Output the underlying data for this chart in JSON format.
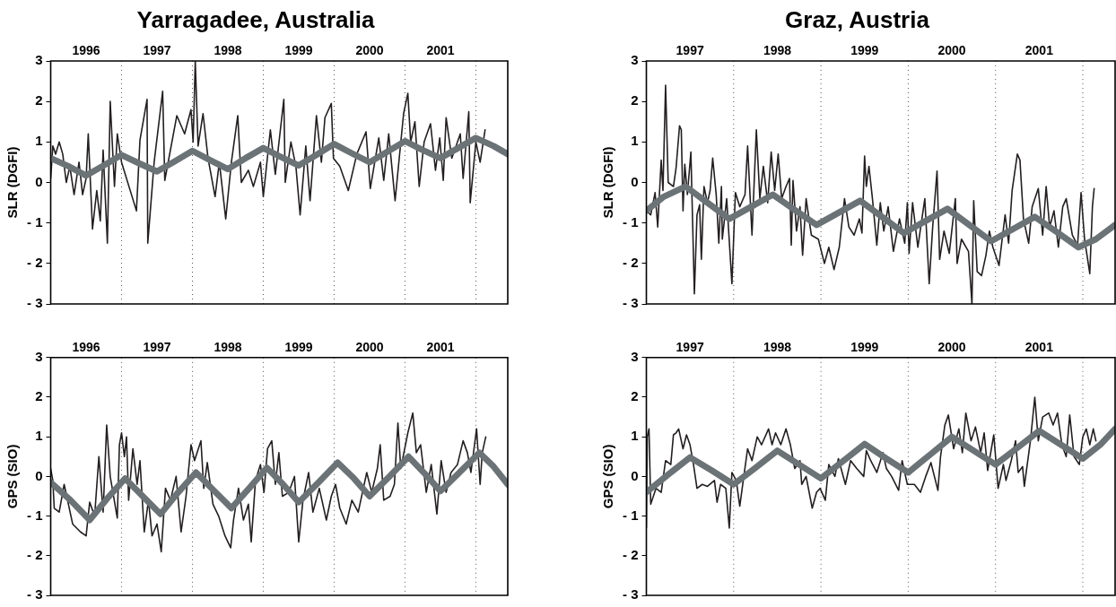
{
  "chart_data": [
    {
      "type": "line",
      "title": "Yarragadee, Australia",
      "ylabel": "SLR (DGFI)",
      "xlim": [
        1996,
        2002.45
      ],
      "xticks": [
        {
          "value": 1996.5,
          "label": "1996"
        },
        {
          "value": 1997.5,
          "label": "1997"
        },
        {
          "value": 1998.5,
          "label": "1998"
        },
        {
          "value": 1999.5,
          "label": "1999"
        },
        {
          "value": 2000.5,
          "label": "2000"
        },
        {
          "value": 2001.5,
          "label": "2001"
        }
      ],
      "ylim": [
        -3,
        3
      ],
      "yticks": [
        {
          "value": -3,
          "label": "- 3"
        },
        {
          "value": -2,
          "label": "- 2"
        },
        {
          "value": -1,
          "label": "- 1"
        },
        0,
        1,
        2,
        3
      ],
      "ref_lines": [
        {
          "axis": "x",
          "value": 1997,
          "line_style": "dotted"
        },
        {
          "axis": "x",
          "value": 1998,
          "line_style": "dotted"
        },
        {
          "axis": "x",
          "value": 1999,
          "line_style": "dotted"
        },
        {
          "axis": "x",
          "value": 2000,
          "line_style": "dotted"
        },
        {
          "axis": "x",
          "value": 2001,
          "line_style": "dotted"
        },
        {
          "axis": "x",
          "value": 2002,
          "line_style": "dotted"
        }
      ],
      "series": [
        {
          "color": "#231f20",
          "x": [
            1996.0,
            1996.03,
            1996.07,
            1996.12,
            1996.17,
            1996.22,
            1996.27,
            1996.33,
            1996.4,
            1996.45,
            1996.5,
            1996.53,
            1996.59,
            1996.65,
            1996.7,
            1996.74,
            1996.8,
            1996.84,
            1996.9,
            1996.94,
            1997.0,
            1997.21,
            1997.26,
            1997.36,
            1997.37,
            1997.46,
            1997.58,
            1997.61,
            1997.78,
            1997.89,
            1997.98,
            1998.01,
            1998.04,
            1998.08,
            1998.15,
            1998.22,
            1998.32,
            1998.38,
            1998.47,
            1998.55,
            1998.64,
            1998.69,
            1998.79,
            1998.86,
            1998.96,
            1999.0,
            1999.1,
            1999.17,
            1999.29,
            1999.31,
            1999.39,
            1999.46,
            1999.52,
            1999.6,
            1999.66,
            1999.75,
            1999.82,
            1999.87,
            1999.96,
            1999.99,
            2000.08,
            2000.2,
            2000.32,
            2000.45,
            2000.51,
            2000.63,
            2000.7,
            2000.77,
            2000.86,
            2000.98,
            2001.04,
            2001.08,
            2001.14,
            2001.2,
            2001.27,
            2001.36,
            2001.43,
            2001.49,
            2001.54,
            2001.58,
            2001.66,
            2001.78,
            2001.82,
            2001.9,
            2001.92,
            2002.0,
            2002.06,
            2002.13
          ],
          "values": [
            0.1,
            0.9,
            0.7,
            1.0,
            0.7,
            0.0,
            0.4,
            -0.3,
            0.5,
            -0.3,
            0.1,
            1.2,
            -1.15,
            -0.2,
            -0.95,
            0.8,
            -1.5,
            2.0,
            -0.1,
            1.2,
            0.5,
            -0.7,
            1.05,
            2.05,
            -1.5,
            0.5,
            2.25,
            0.05,
            1.65,
            1.2,
            1.8,
            1.0,
            3.0,
            0.9,
            1.7,
            0.6,
            -0.35,
            0.5,
            -0.9,
            0.5,
            1.65,
            0.0,
            0.3,
            -0.1,
            0.5,
            -0.35,
            1.3,
            0.2,
            2.05,
            0.0,
            1.0,
            0.4,
            -0.8,
            0.9,
            -0.45,
            1.65,
            0.5,
            1.6,
            1.95,
            0.6,
            0.4,
            -0.2,
            0.7,
            1.25,
            -0.15,
            1.1,
            0.05,
            1.2,
            -0.45,
            1.7,
            2.2,
            1.0,
            1.5,
            -0.1,
            1.0,
            1.45,
            0.3,
            1.1,
            0.05,
            1.6,
            0.6,
            1.2,
            0.1,
            1.75,
            -0.5,
            1.0,
            0.5,
            1.3
          ]
        },
        {
          "color": "#6b7377",
          "x": [
            1996.0,
            1996.25,
            1996.5,
            1996.75,
            1997.0,
            1997.25,
            1997.5,
            1997.75,
            1998.0,
            1998.25,
            1998.5,
            1998.75,
            1999.0,
            1999.25,
            1999.5,
            1999.75,
            2000.0,
            2000.25,
            2000.5,
            2000.75,
            2001.0,
            2001.25,
            2001.5,
            2001.75,
            2002.0,
            2002.25,
            2002.45
          ],
          "values": [
            0.6,
            0.4,
            0.17,
            0.42,
            0.68,
            0.47,
            0.27,
            0.52,
            0.78,
            0.55,
            0.33,
            0.6,
            0.85,
            0.63,
            0.42,
            0.68,
            0.95,
            0.72,
            0.5,
            0.76,
            1.02,
            0.8,
            0.6,
            0.85,
            1.1,
            0.9,
            0.7
          ]
        }
      ]
    },
    {
      "type": "line",
      "title": "Graz, Austria",
      "ylabel": "SLR (DGFI)",
      "xlim": [
        1997,
        2002.37
      ],
      "xticks": [
        {
          "value": 1997.5,
          "label": "1997"
        },
        {
          "value": 1998.5,
          "label": "1998"
        },
        {
          "value": 1999.5,
          "label": "1999"
        },
        {
          "value": 2000.5,
          "label": "2000"
        },
        {
          "value": 2001.5,
          "label": "2001"
        }
      ],
      "ylim": [
        -3,
        3
      ],
      "yticks": [
        {
          "value": -3,
          "label": "- 3"
        },
        {
          "value": -2,
          "label": "- 2"
        },
        {
          "value": -1,
          "label": "- 1"
        },
        0,
        1,
        2,
        3
      ],
      "ref_lines": [
        {
          "axis": "x",
          "value": 1998,
          "line_style": "dotted"
        },
        {
          "axis": "x",
          "value": 1999,
          "line_style": "dotted"
        },
        {
          "axis": "x",
          "value": 2000,
          "line_style": "dotted"
        },
        {
          "axis": "x",
          "value": 2001,
          "line_style": "dotted"
        },
        {
          "axis": "x",
          "value": 2002,
          "line_style": "dotted"
        }
      ],
      "series": [
        {
          "color": "#231f20",
          "x": [
            1997.0,
            1997.05,
            1997.1,
            1997.13,
            1997.17,
            1997.19,
            1997.22,
            1997.25,
            1997.31,
            1997.34,
            1997.38,
            1997.4,
            1997.42,
            1997.44,
            1997.47,
            1997.51,
            1997.55,
            1997.58,
            1997.61,
            1997.63,
            1997.66,
            1997.7,
            1997.73,
            1997.76,
            1997.8,
            1997.83,
            1997.86,
            1997.87,
            1997.92,
            1997.98,
            1998.02,
            1998.07,
            1998.13,
            1998.16,
            1998.21,
            1998.26,
            1998.3,
            1998.34,
            1998.39,
            1998.43,
            1998.47,
            1998.51,
            1998.55,
            1998.6,
            1998.64,
            1998.66,
            1998.68,
            1998.72,
            1998.76,
            1998.79,
            1998.83,
            1998.89,
            1998.97,
            1999.04,
            1999.09,
            1999.15,
            1999.21,
            1999.27,
            1999.32,
            1999.38,
            1999.44,
            1999.47,
            1999.5,
            1999.52,
            1999.55,
            1999.59,
            1999.64,
            1999.68,
            1999.72,
            1999.77,
            1999.83,
            1999.9,
            1999.96,
            1999.99,
            2000.01,
            2000.05,
            2000.11,
            2000.19,
            2000.24,
            2000.28,
            2000.33,
            2000.36,
            2000.41,
            2000.47,
            2000.54,
            2000.56,
            2000.61,
            2000.69,
            2000.73,
            2000.75,
            2000.79,
            2000.84,
            2000.89,
            2000.93,
            2000.97,
            2001.04,
            2001.11,
            2001.15,
            2001.19,
            2001.25,
            2001.28,
            2001.32,
            2001.38,
            2001.42,
            2001.49,
            2001.54,
            2001.58,
            2001.62,
            2001.67,
            2001.72,
            2001.77,
            2001.81,
            2001.88,
            2001.94,
            2001.98,
            2002.02,
            2002.08,
            2002.11,
            2002.13
          ],
          "values": [
            -0.7,
            -0.8,
            -0.25,
            -1.1,
            0.55,
            -0.2,
            2.4,
            0.0,
            -0.1,
            0.35,
            1.4,
            1.3,
            -0.7,
            0.45,
            -0.3,
            0.75,
            -2.75,
            -0.8,
            -0.55,
            -1.9,
            -0.1,
            -0.5,
            -0.2,
            0.6,
            -0.3,
            -1.5,
            -0.1,
            -1.4,
            -0.4,
            -2.5,
            -0.25,
            -0.6,
            -0.3,
            0.9,
            -1.3,
            1.3,
            -0.4,
            0.4,
            -0.5,
            0.75,
            -0.2,
            0.7,
            -0.4,
            -0.1,
            0.1,
            -1.55,
            0.05,
            -1.2,
            -0.6,
            -1.8,
            -0.4,
            -1.3,
            -1.4,
            -2.0,
            -1.6,
            -2.15,
            -1.6,
            -0.4,
            -1.1,
            -1.3,
            -0.9,
            -1.25,
            0.65,
            -0.1,
            0.4,
            -0.4,
            -1.55,
            -0.5,
            -1.2,
            -0.6,
            -1.7,
            -0.9,
            -1.5,
            -0.5,
            -1.75,
            -0.5,
            -1.6,
            -0.4,
            -2.5,
            -1.1,
            0.28,
            -1.9,
            -1.2,
            -1.75,
            -0.4,
            -2.0,
            -1.4,
            -1.7,
            -3.0,
            -0.45,
            -2.2,
            -2.3,
            -1.8,
            -1.2,
            -1.6,
            -2.05,
            -0.8,
            -1.5,
            -0.2,
            0.7,
            0.55,
            -0.9,
            -1.5,
            -0.6,
            -0.15,
            -1.3,
            -0.1,
            -1.1,
            -0.7,
            -1.6,
            -0.6,
            -0.4,
            -1.3,
            -1.55,
            -0.25,
            -1.4,
            -2.25,
            -0.6,
            -0.15
          ]
        },
        {
          "color": "#6b7377",
          "x": [
            1997.0,
            1997.2,
            1997.45,
            1997.7,
            1997.95,
            1998.2,
            1998.45,
            1998.7,
            1998.95,
            1999.2,
            1999.45,
            1999.7,
            1999.95,
            2000.2,
            2000.45,
            2000.7,
            2000.95,
            2001.2,
            2001.45,
            2001.7,
            2001.95,
            2002.15,
            2002.37
          ],
          "values": [
            -0.7,
            -0.35,
            -0.1,
            -0.5,
            -0.9,
            -0.6,
            -0.3,
            -0.68,
            -1.05,
            -0.75,
            -0.45,
            -0.85,
            -1.25,
            -0.95,
            -0.65,
            -1.05,
            -1.45,
            -1.15,
            -0.85,
            -1.22,
            -1.6,
            -1.4,
            -1.05
          ]
        }
      ]
    },
    {
      "type": "line",
      "ylabel": "GPS (SIO)",
      "xlim": [
        1996,
        2002.45
      ],
      "xticks": [
        {
          "value": 1996.5,
          "label": "1996"
        },
        {
          "value": 1997.5,
          "label": "1997"
        },
        {
          "value": 1998.5,
          "label": "1998"
        },
        {
          "value": 1999.5,
          "label": "1999"
        },
        {
          "value": 2000.5,
          "label": "2000"
        },
        {
          "value": 2001.5,
          "label": "2001"
        }
      ],
      "ylim": [
        -3,
        3
      ],
      "yticks": [
        {
          "value": -3,
          "label": "- 3"
        },
        {
          "value": -2,
          "label": "- 2"
        },
        {
          "value": -1,
          "label": "- 1"
        },
        0,
        1,
        2,
        3
      ],
      "ref_lines": [
        {
          "axis": "x",
          "value": 1997,
          "line_style": "dotted"
        },
        {
          "axis": "x",
          "value": 1998,
          "line_style": "dotted"
        },
        {
          "axis": "x",
          "value": 1999,
          "line_style": "dotted"
        },
        {
          "axis": "x",
          "value": 2000,
          "line_style": "dotted"
        },
        {
          "axis": "x",
          "value": 2001,
          "line_style": "dotted"
        },
        {
          "axis": "x",
          "value": 2002,
          "line_style": "dotted"
        }
      ],
      "series": [
        {
          "color": "#231f20",
          "x": [
            1996.0,
            1996.03,
            1996.05,
            1996.12,
            1996.19,
            1996.31,
            1996.42,
            1996.5,
            1996.55,
            1996.62,
            1996.68,
            1996.74,
            1996.79,
            1996.84,
            1996.94,
            1996.97,
            1997.0,
            1997.04,
            1997.07,
            1997.1,
            1997.16,
            1997.22,
            1997.26,
            1997.32,
            1997.38,
            1997.43,
            1997.5,
            1997.56,
            1997.62,
            1997.69,
            1997.77,
            1997.84,
            1997.91,
            1997.98,
            1998.03,
            1998.12,
            1998.16,
            1998.21,
            1998.29,
            1998.37,
            1998.46,
            1998.54,
            1998.58,
            1998.65,
            1998.72,
            1998.79,
            1998.83,
            1998.89,
            1998.96,
            1999.01,
            1999.06,
            1999.12,
            1999.17,
            1999.22,
            1999.27,
            1999.36,
            1999.44,
            1999.5,
            1999.56,
            1999.64,
            1999.7,
            1999.79,
            1999.89,
            1999.96,
            2000.02,
            2000.08,
            2000.17,
            2000.25,
            2000.34,
            2000.46,
            2000.53,
            2000.61,
            2000.65,
            2000.7,
            2000.79,
            2000.85,
            2000.9,
            2000.94,
            2001.04,
            2001.11,
            2001.16,
            2001.22,
            2001.3,
            2001.37,
            2001.45,
            2001.51,
            2001.58,
            2001.65,
            2001.74,
            2001.82,
            2001.88,
            2001.93,
            2002.01,
            2002.06,
            2002.09,
            2002.14
          ],
          "values": [
            0.2,
            -0.1,
            -0.8,
            -0.9,
            -0.2,
            -1.2,
            -1.4,
            -1.5,
            -0.65,
            -1.0,
            0.5,
            -0.9,
            1.3,
            0.0,
            -1.05,
            0.8,
            1.1,
            0.5,
            1.0,
            -0.6,
            0.7,
            -0.2,
            0.4,
            -1.4,
            -0.6,
            -1.5,
            -1.2,
            -1.9,
            -0.3,
            -0.6,
            0.0,
            -1.4,
            -0.5,
            0.8,
            0.4,
            0.9,
            -0.3,
            0.35,
            -0.7,
            -1.0,
            -1.5,
            -1.8,
            -1.1,
            -0.3,
            -1.1,
            -0.7,
            -1.65,
            -0.1,
            0.3,
            -0.4,
            0.7,
            0.9,
            -0.2,
            0.6,
            -0.5,
            -0.4,
            0.0,
            -1.65,
            -0.6,
            0.1,
            -0.9,
            -0.3,
            -1.1,
            -0.5,
            -0.2,
            -0.8,
            -1.2,
            -0.6,
            -0.9,
            0.1,
            -0.4,
            0.2,
            0.8,
            -0.6,
            -0.5,
            -0.2,
            1.35,
            0.2,
            1.1,
            1.6,
            0.6,
            0.8,
            -0.4,
            0.3,
            -0.95,
            0.4,
            -0.4,
            0.1,
            0.3,
            0.9,
            0.6,
            0.1,
            1.2,
            -0.2,
            0.6,
            1.0
          ]
        },
        {
          "color": "#6b7377",
          "x": [
            1996.0,
            1996.28,
            1996.55,
            1996.8,
            1997.05,
            1997.3,
            1997.55,
            1997.8,
            1998.05,
            1998.3,
            1998.55,
            1998.8,
            1999.05,
            1999.28,
            1999.5,
            1999.78,
            2000.05,
            2000.28,
            2000.5,
            2000.78,
            2001.05,
            2001.28,
            2001.5,
            2001.78,
            2002.05,
            2002.25,
            2002.45
          ],
          "values": [
            -0.15,
            -0.6,
            -1.1,
            -0.55,
            -0.05,
            -0.5,
            -0.95,
            -0.4,
            0.1,
            -0.35,
            -0.8,
            -0.3,
            0.22,
            -0.2,
            -0.65,
            -0.15,
            0.35,
            -0.05,
            -0.5,
            0.0,
            0.5,
            0.07,
            -0.37,
            0.12,
            0.6,
            0.25,
            -0.2
          ]
        }
      ]
    },
    {
      "type": "line",
      "ylabel": "GPS (SIO)",
      "xlim": [
        1997,
        2002.37
      ],
      "xticks": [
        {
          "value": 1997.5,
          "label": "1997"
        },
        {
          "value": 1998.5,
          "label": "1998"
        },
        {
          "value": 1999.5,
          "label": "1999"
        },
        {
          "value": 2000.5,
          "label": "2000"
        },
        {
          "value": 2001.5,
          "label": "2001"
        }
      ],
      "ylim": [
        -3,
        3
      ],
      "yticks": [
        {
          "value": -3,
          "label": "- 3"
        },
        {
          "value": -2,
          "label": "- 2"
        },
        {
          "value": -1,
          "label": "- 1"
        },
        0,
        1,
        2,
        3
      ],
      "ref_lines": [
        {
          "axis": "x",
          "value": 1998,
          "line_style": "dotted"
        },
        {
          "axis": "x",
          "value": 1999,
          "line_style": "dotted"
        },
        {
          "axis": "x",
          "value": 2000,
          "line_style": "dotted"
        },
        {
          "axis": "x",
          "value": 2001,
          "line_style": "dotted"
        },
        {
          "axis": "x",
          "value": 2002,
          "line_style": "dotted"
        }
      ],
      "series": [
        {
          "color": "#231f20",
          "x": [
            1997.0,
            1997.01,
            1997.03,
            1997.05,
            1997.11,
            1997.17,
            1997.22,
            1997.28,
            1997.31,
            1997.34,
            1997.37,
            1997.42,
            1997.46,
            1997.5,
            1997.54,
            1997.58,
            1997.64,
            1997.7,
            1997.78,
            1997.81,
            1997.85,
            1997.91,
            1997.95,
            1997.98,
            1998.03,
            1998.07,
            1998.11,
            1998.16,
            1998.21,
            1998.27,
            1998.32,
            1998.4,
            1998.44,
            1998.48,
            1998.54,
            1998.6,
            1998.65,
            1998.7,
            1998.76,
            1998.78,
            1998.83,
            1998.9,
            1998.95,
            1998.99,
            1999.05,
            1999.09,
            1999.16,
            1999.2,
            1999.28,
            1999.34,
            1999.41,
            1999.49,
            1999.52,
            1999.57,
            1999.64,
            1999.71,
            1999.75,
            1999.81,
            1999.89,
            1999.93,
            1999.99,
            2000.07,
            2000.14,
            2000.2,
            2000.26,
            2000.34,
            2000.37,
            2000.42,
            2000.46,
            2000.52,
            2000.58,
            2000.62,
            2000.66,
            2000.72,
            2000.77,
            2000.83,
            2000.87,
            2000.91,
            2000.98,
            2001.03,
            2001.09,
            2001.12,
            2001.18,
            2001.23,
            2001.26,
            2001.31,
            2001.33,
            2001.4,
            2001.45,
            2001.49,
            2001.54,
            2001.61,
            2001.66,
            2001.71,
            2001.76,
            2001.81,
            2001.85,
            2001.9,
            2001.96,
            2002.0,
            2002.04,
            2002.08,
            2002.12,
            2002.15
          ],
          "values": [
            -1.3,
            1.0,
            1.2,
            -0.7,
            -0.3,
            -0.4,
            0.4,
            0.3,
            1.05,
            1.1,
            1.2,
            0.7,
            1.05,
            0.8,
            0.3,
            -0.3,
            -0.2,
            -0.25,
            -0.1,
            -0.65,
            -0.2,
            -0.3,
            -1.3,
            0.1,
            -0.1,
            -0.75,
            -0.1,
            0.7,
            0.4,
            1.0,
            0.8,
            1.2,
            0.8,
            1.1,
            0.8,
            1.2,
            0.8,
            0.2,
            0.4,
            -0.2,
            0.0,
            -0.8,
            -0.4,
            -0.3,
            -0.6,
            0.3,
            0.0,
            0.45,
            -0.2,
            0.4,
            0.2,
            0.0,
            0.65,
            0.4,
            0.1,
            0.6,
            0.2,
            0.0,
            -0.35,
            0.4,
            -0.2,
            -0.2,
            -0.4,
            0.0,
            0.35,
            -0.35,
            0.5,
            1.3,
            1.55,
            0.7,
            1.2,
            0.6,
            1.6,
            0.9,
            1.25,
            0.6,
            1.1,
            0.15,
            1.05,
            -0.3,
            0.3,
            -0.1,
            0.4,
            0.9,
            0.1,
            0.25,
            -0.25,
            0.9,
            2.0,
            0.9,
            1.5,
            1.6,
            1.3,
            1.6,
            0.8,
            0.5,
            1.55,
            0.5,
            0.3,
            1.0,
            1.2,
            0.8,
            1.2,
            0.9
          ]
        },
        {
          "color": "#6b7377",
          "x": [
            1997.0,
            1997.25,
            1997.5,
            1997.75,
            1998.0,
            1998.25,
            1998.5,
            1998.75,
            1999.0,
            1999.25,
            1999.5,
            1999.75,
            2000.0,
            2000.25,
            2000.5,
            2000.75,
            2001.0,
            2001.25,
            2001.5,
            2001.75,
            2002.0,
            2002.2,
            2002.37
          ],
          "values": [
            -0.4,
            0.05,
            0.48,
            0.15,
            -0.2,
            0.22,
            0.65,
            0.3,
            -0.05,
            0.38,
            0.82,
            0.45,
            0.1,
            0.55,
            1.0,
            0.65,
            0.3,
            0.72,
            1.15,
            0.8,
            0.45,
            0.8,
            1.2
          ]
        }
      ]
    }
  ]
}
